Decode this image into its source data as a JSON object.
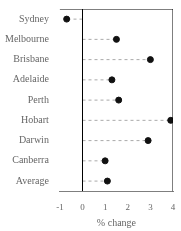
{
  "chart_data": {
    "type": "dot",
    "orientation": "horizontal",
    "categories": [
      "Sydney",
      "Melbourne",
      "Brisbane",
      "Adelaide",
      "Perth",
      "Hobart",
      "Darwin",
      "Canberra",
      "Average"
    ],
    "values": [
      -0.7,
      1.5,
      3.0,
      1.3,
      1.6,
      3.9,
      2.9,
      1.0,
      1.1
    ],
    "color": "#111111",
    "line_style": "dashed",
    "xlabel": "% change",
    "xlim": [
      -1,
      4
    ],
    "xticks": [
      -1,
      0,
      1,
      2,
      3,
      4
    ],
    "grid": false
  }
}
